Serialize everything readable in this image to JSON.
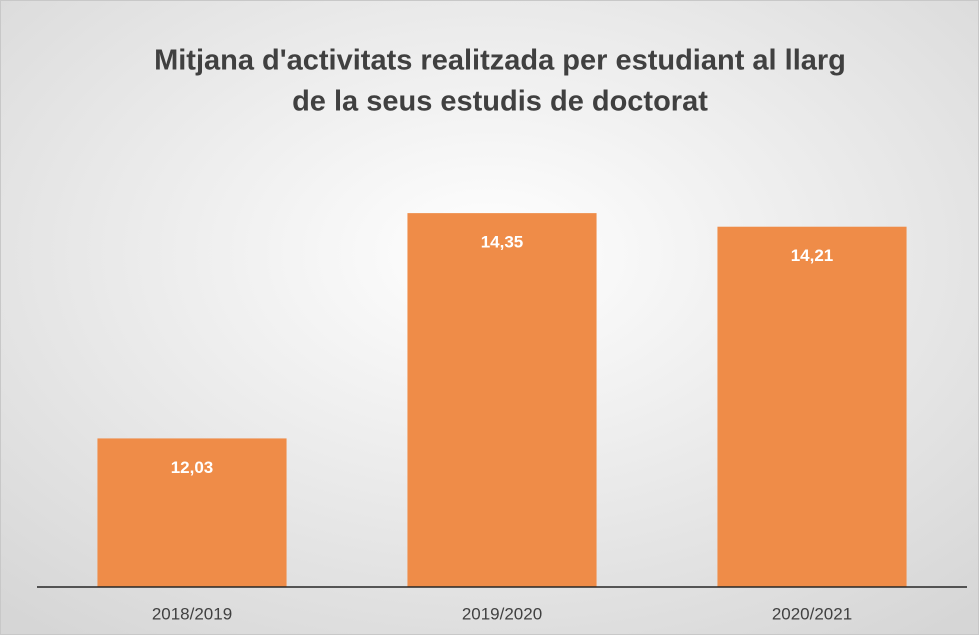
{
  "chart_data": {
    "type": "bar",
    "title": [
      "Mitjana d'activitats realitzada per estudiant al llarg",
      "de la seus estudis de doctorat"
    ],
    "categories": [
      "2018/2019",
      "2019/2020",
      "2020/2021"
    ],
    "values": [
      12.03,
      14.35,
      14.21
    ],
    "value_labels": [
      "12,03",
      "14,35",
      "14,21"
    ],
    "color": "#ef8c48",
    "ylim": [
      10.5,
      15.0
    ]
  }
}
